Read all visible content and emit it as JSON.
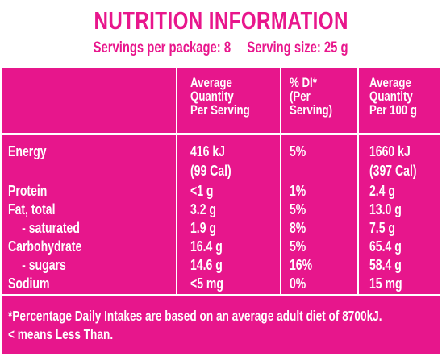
{
  "panel": {
    "title": "NUTRITION INFORMATION",
    "servings_per_package": "Servings per package: 8",
    "serving_size": "Serving size: 25 g"
  },
  "header": {
    "per_serving": [
      "Average",
      "Quantity",
      "Per Serving"
    ],
    "di": [
      "% DI*",
      "(Per",
      "Serving)"
    ],
    "per_100g": [
      "Average",
      "Quantity",
      "Per 100 g"
    ]
  },
  "rows": [
    {
      "name": "Energy",
      "serving": "416 kJ",
      "di": "5%",
      "per100": "1660 kJ"
    },
    {
      "name": "",
      "serving": "(99 Cal)",
      "di": "",
      "per100": "(397 Cal)"
    },
    {
      "name": "Protein",
      "serving": "<1 g",
      "di": "1%",
      "per100": "2.4 g"
    },
    {
      "name": "Fat, total",
      "serving": "3.2 g",
      "di": "5%",
      "per100": "13.0 g"
    },
    {
      "name": " - saturated",
      "serving": "1.9 g",
      "di": "8%",
      "per100": "7.5 g"
    },
    {
      "name": "Carbohydrate",
      "serving": "16.4 g",
      "di": "5%",
      "per100": "65.4 g"
    },
    {
      "name": " - sugars",
      "serving": "14.6 g",
      "di": "16%",
      "per100": "58.4 g"
    },
    {
      "name": "Sodium",
      "serving": "<5 mg",
      "di": "0%",
      "per100": "15 mg"
    }
  ],
  "footnote": [
    "*Percentage Daily Intakes are based on an average adult diet of 8700kJ.",
    "< means Less Than."
  ],
  "colors": {
    "brand": "#e7168c",
    "text_on_brand": "#ffffff"
  }
}
